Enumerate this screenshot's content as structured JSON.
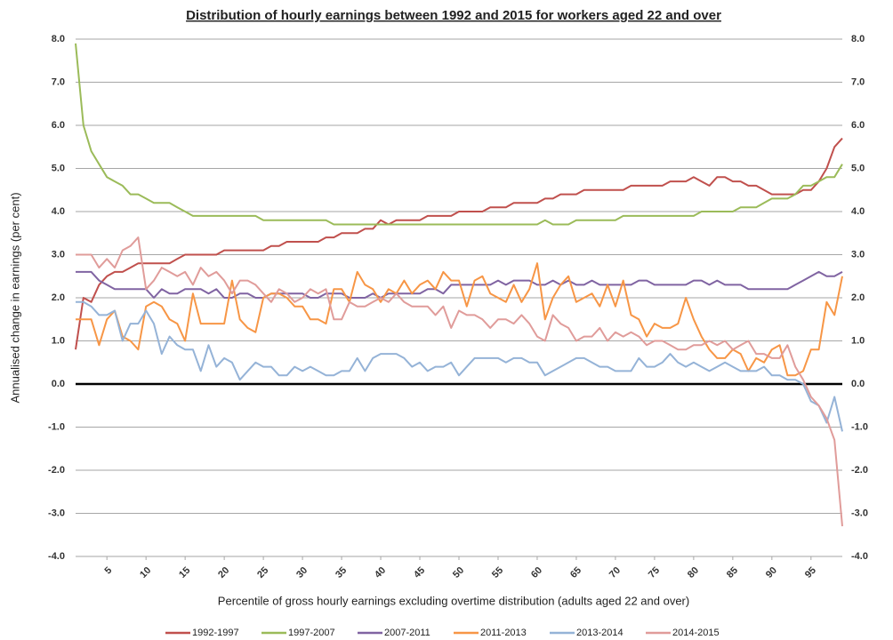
{
  "chart_data": {
    "type": "line",
    "title": "Distribution of hourly earnings between 1992 and 2015 for workers aged 22 and over",
    "x_label": "Percentile of gross hourly earnings excluding overtime distribution  (adults aged 22 and over)",
    "y_label": "Annualised change in earnings (per cent)",
    "x": [
      1,
      2,
      3,
      4,
      5,
      6,
      7,
      8,
      9,
      10,
      11,
      12,
      13,
      14,
      15,
      16,
      17,
      18,
      19,
      20,
      21,
      22,
      23,
      24,
      25,
      26,
      27,
      28,
      29,
      30,
      31,
      32,
      33,
      34,
      35,
      36,
      37,
      38,
      39,
      40,
      41,
      42,
      43,
      44,
      45,
      46,
      47,
      48,
      49,
      50,
      51,
      52,
      53,
      54,
      55,
      56,
      57,
      58,
      59,
      60,
      61,
      62,
      63,
      64,
      65,
      66,
      67,
      68,
      69,
      70,
      71,
      72,
      73,
      74,
      75,
      76,
      77,
      78,
      79,
      80,
      81,
      82,
      83,
      84,
      85,
      86,
      87,
      88,
      89,
      90,
      91,
      92,
      93,
      94,
      95,
      96,
      97,
      98,
      99
    ],
    "xlim": [
      1,
      99
    ],
    "xticks": [
      5,
      10,
      15,
      20,
      25,
      30,
      35,
      40,
      45,
      50,
      55,
      60,
      65,
      70,
      75,
      80,
      85,
      90,
      95
    ],
    "ylim": [
      -4,
      8
    ],
    "yticks": [
      {
        "value": -4,
        "label": "-4.0"
      },
      {
        "value": -3,
        "label": "-3.0"
      },
      {
        "value": -2,
        "label": "-2.0"
      },
      {
        "value": -1,
        "label": "-1.0"
      },
      {
        "value": 0,
        "label": "0.0"
      },
      {
        "value": 1,
        "label": "1.0"
      },
      {
        "value": 2,
        "label": "2.0"
      },
      {
        "value": 3,
        "label": "3.0"
      },
      {
        "value": 4,
        "label": "4.0"
      },
      {
        "value": 5,
        "label": "5.0"
      },
      {
        "value": 6,
        "label": "6.0"
      },
      {
        "value": 7,
        "label": "7.0"
      },
      {
        "value": 8,
        "label": "8.0"
      }
    ],
    "grid": true,
    "legend": "bottom",
    "series": [
      {
        "name": "1992-1997",
        "color": "#c0504d",
        "values": [
          0.8,
          2.0,
          1.9,
          2.3,
          2.5,
          2.6,
          2.6,
          2.7,
          2.8,
          2.8,
          2.8,
          2.8,
          2.8,
          2.9,
          3.0,
          3.0,
          3.0,
          3.0,
          3.0,
          3.1,
          3.1,
          3.1,
          3.1,
          3.1,
          3.1,
          3.2,
          3.2,
          3.3,
          3.3,
          3.3,
          3.3,
          3.3,
          3.4,
          3.4,
          3.5,
          3.5,
          3.5,
          3.6,
          3.6,
          3.8,
          3.7,
          3.8,
          3.8,
          3.8,
          3.8,
          3.9,
          3.9,
          3.9,
          3.9,
          4.0,
          4.0,
          4.0,
          4.0,
          4.1,
          4.1,
          4.1,
          4.2,
          4.2,
          4.2,
          4.2,
          4.3,
          4.3,
          4.4,
          4.4,
          4.4,
          4.5,
          4.5,
          4.5,
          4.5,
          4.5,
          4.5,
          4.6,
          4.6,
          4.6,
          4.6,
          4.6,
          4.7,
          4.7,
          4.7,
          4.8,
          4.7,
          4.6,
          4.8,
          4.8,
          4.7,
          4.7,
          4.6,
          4.6,
          4.5,
          4.4,
          4.4,
          4.4,
          4.4,
          4.5,
          4.5,
          4.7,
          5.0,
          5.5,
          5.7
        ]
      },
      {
        "name": "1997-2007",
        "color": "#9bbb59",
        "values": [
          7.9,
          6.0,
          5.4,
          5.1,
          4.8,
          4.7,
          4.6,
          4.4,
          4.4,
          4.3,
          4.2,
          4.2,
          4.2,
          4.1,
          4.0,
          3.9,
          3.9,
          3.9,
          3.9,
          3.9,
          3.9,
          3.9,
          3.9,
          3.9,
          3.8,
          3.8,
          3.8,
          3.8,
          3.8,
          3.8,
          3.8,
          3.8,
          3.8,
          3.7,
          3.7,
          3.7,
          3.7,
          3.7,
          3.7,
          3.7,
          3.7,
          3.7,
          3.7,
          3.7,
          3.7,
          3.7,
          3.7,
          3.7,
          3.7,
          3.7,
          3.7,
          3.7,
          3.7,
          3.7,
          3.7,
          3.7,
          3.7,
          3.7,
          3.7,
          3.7,
          3.8,
          3.7,
          3.7,
          3.7,
          3.8,
          3.8,
          3.8,
          3.8,
          3.8,
          3.8,
          3.9,
          3.9,
          3.9,
          3.9,
          3.9,
          3.9,
          3.9,
          3.9,
          3.9,
          3.9,
          4.0,
          4.0,
          4.0,
          4.0,
          4.0,
          4.1,
          4.1,
          4.1,
          4.2,
          4.3,
          4.3,
          4.3,
          4.4,
          4.6,
          4.6,
          4.7,
          4.8,
          4.8,
          5.1
        ]
      },
      {
        "name": "2007-2011",
        "color": "#8064a2",
        "values": [
          2.6,
          2.6,
          2.6,
          2.4,
          2.3,
          2.2,
          2.2,
          2.2,
          2.2,
          2.2,
          2.0,
          2.2,
          2.1,
          2.1,
          2.2,
          2.2,
          2.2,
          2.1,
          2.2,
          2.0,
          2.0,
          2.1,
          2.1,
          2.0,
          2.0,
          2.1,
          2.1,
          2.1,
          2.1,
          2.1,
          2.0,
          2.0,
          2.1,
          2.1,
          2.1,
          2.0,
          2.0,
          2.0,
          2.1,
          2.0,
          2.1,
          2.1,
          2.1,
          2.1,
          2.1,
          2.2,
          2.2,
          2.1,
          2.3,
          2.3,
          2.3,
          2.3,
          2.3,
          2.3,
          2.4,
          2.3,
          2.4,
          2.4,
          2.4,
          2.3,
          2.3,
          2.4,
          2.3,
          2.4,
          2.3,
          2.3,
          2.4,
          2.3,
          2.3,
          2.3,
          2.3,
          2.3,
          2.4,
          2.4,
          2.3,
          2.3,
          2.3,
          2.3,
          2.3,
          2.4,
          2.4,
          2.3,
          2.4,
          2.3,
          2.3,
          2.3,
          2.2,
          2.2,
          2.2,
          2.2,
          2.2,
          2.2,
          2.3,
          2.4,
          2.5,
          2.6,
          2.5,
          2.5,
          2.6
        ]
      },
      {
        "name": "2011-2013",
        "color": "#f79646",
        "values": [
          1.5,
          1.5,
          1.5,
          0.9,
          1.5,
          1.7,
          1.1,
          1.0,
          0.8,
          1.8,
          1.9,
          1.8,
          1.5,
          1.4,
          1.0,
          2.1,
          1.4,
          1.4,
          1.4,
          1.4,
          2.4,
          1.5,
          1.3,
          1.2,
          2.0,
          2.1,
          2.1,
          2.0,
          1.8,
          1.8,
          1.5,
          1.5,
          1.4,
          2.2,
          2.2,
          1.9,
          2.6,
          2.3,
          2.2,
          1.9,
          2.2,
          2.1,
          2.4,
          2.1,
          2.3,
          2.4,
          2.2,
          2.6,
          2.4,
          2.4,
          1.8,
          2.4,
          2.5,
          2.1,
          2.0,
          1.9,
          2.3,
          1.9,
          2.2,
          2.8,
          1.5,
          2.0,
          2.3,
          2.5,
          1.9,
          2.0,
          2.1,
          1.8,
          2.3,
          1.8,
          2.4,
          1.6,
          1.5,
          1.1,
          1.4,
          1.3,
          1.3,
          1.4,
          2.0,
          1.5,
          1.1,
          0.8,
          0.6,
          0.6,
          0.8,
          0.7,
          0.3,
          0.6,
          0.5,
          0.8,
          0.9,
          0.2,
          0.2,
          0.3,
          0.8,
          0.8,
          1.9,
          1.6,
          2.5
        ]
      },
      {
        "name": "2013-2014",
        "color": "#95b3d7",
        "values": [
          1.9,
          1.9,
          1.8,
          1.6,
          1.6,
          1.7,
          1.0,
          1.4,
          1.4,
          1.7,
          1.4,
          0.7,
          1.1,
          0.9,
          0.8,
          0.8,
          0.3,
          0.9,
          0.4,
          0.6,
          0.5,
          0.1,
          0.3,
          0.5,
          0.4,
          0.4,
          0.2,
          0.2,
          0.4,
          0.3,
          0.4,
          0.3,
          0.2,
          0.2,
          0.3,
          0.3,
          0.6,
          0.3,
          0.6,
          0.7,
          0.7,
          0.7,
          0.6,
          0.4,
          0.5,
          0.3,
          0.4,
          0.4,
          0.5,
          0.2,
          0.4,
          0.6,
          0.6,
          0.6,
          0.6,
          0.5,
          0.6,
          0.6,
          0.5,
          0.5,
          0.2,
          0.3,
          0.4,
          0.5,
          0.6,
          0.6,
          0.5,
          0.4,
          0.4,
          0.3,
          0.3,
          0.3,
          0.6,
          0.4,
          0.4,
          0.5,
          0.7,
          0.5,
          0.4,
          0.5,
          0.4,
          0.3,
          0.4,
          0.5,
          0.4,
          0.3,
          0.3,
          0.3,
          0.4,
          0.2,
          0.2,
          0.1,
          0.1,
          0.0,
          -0.4,
          -0.5,
          -0.9,
          -0.3,
          -1.1
        ]
      },
      {
        "name": "2014-2015",
        "color": "#e09c9a",
        "values": [
          3.0,
          3.0,
          3.0,
          2.7,
          2.9,
          2.7,
          3.1,
          3.2,
          3.4,
          2.2,
          2.4,
          2.7,
          2.6,
          2.5,
          2.6,
          2.3,
          2.7,
          2.5,
          2.6,
          2.4,
          2.1,
          2.4,
          2.4,
          2.3,
          2.1,
          1.9,
          2.2,
          2.1,
          1.9,
          2.0,
          2.2,
          2.1,
          2.2,
          1.5,
          1.5,
          1.9,
          1.8,
          1.8,
          1.9,
          2.0,
          1.9,
          2.1,
          1.9,
          1.8,
          1.8,
          1.8,
          1.6,
          1.8,
          1.3,
          1.7,
          1.6,
          1.6,
          1.5,
          1.3,
          1.5,
          1.5,
          1.4,
          1.6,
          1.4,
          1.1,
          1.0,
          1.6,
          1.4,
          1.3,
          1.0,
          1.1,
          1.1,
          1.3,
          1.0,
          1.2,
          1.1,
          1.2,
          1.1,
          0.9,
          1.0,
          1.0,
          0.9,
          0.8,
          0.8,
          0.9,
          0.9,
          1.0,
          0.9,
          1.0,
          0.8,
          0.9,
          1.0,
          0.7,
          0.7,
          0.6,
          0.6,
          0.9,
          0.4,
          0.1,
          -0.3,
          -0.5,
          -0.8,
          -1.3,
          -3.3
        ]
      }
    ]
  }
}
